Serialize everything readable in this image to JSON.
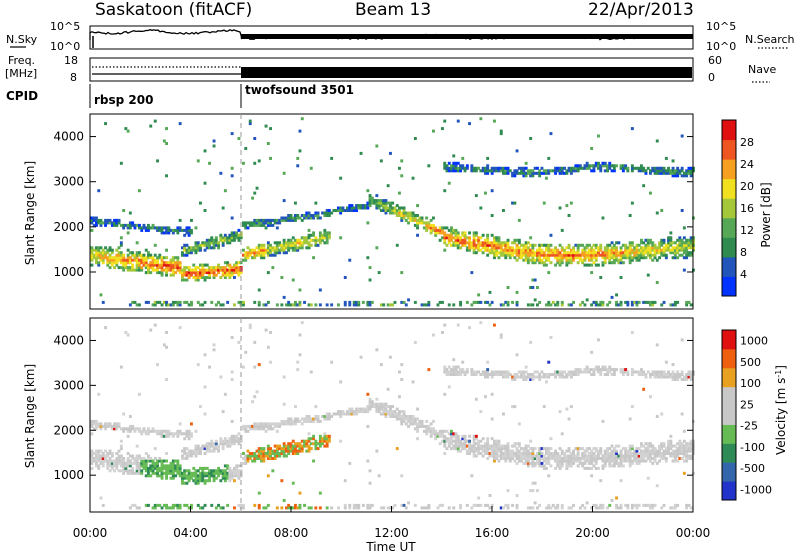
{
  "header": {
    "station": "Saskatoon (fitACF)",
    "beam": "Beam 13",
    "date": "22/Apr/2013"
  },
  "noise_panel": {
    "left_label": "N.Sky",
    "right_label": "N.Search",
    "left_ticks": [
      "10^5",
      "10^0"
    ],
    "right_ticks": [
      "10^5",
      "10^0"
    ]
  },
  "freq_panel": {
    "left_label_line1": "Freq.",
    "left_label_line2": "[MHz]",
    "left_ticks": [
      "18",
      "8"
    ],
    "right_label": "Nave",
    "right_ticks": [
      "60",
      "0"
    ]
  },
  "cpid_panel": {
    "label": "CPID",
    "programs": [
      {
        "name": "rbsp 200",
        "start": "00:00"
      },
      {
        "name": "twofsound 3501",
        "start": "06:00"
      }
    ]
  },
  "time_axis": {
    "label": "Time UT",
    "ticks": [
      "00:00",
      "04:00",
      "08:00",
      "12:00",
      "16:00",
      "20:00",
      "00:00"
    ]
  },
  "power_colorbar": {
    "label": "Power [dB]",
    "ticks": [
      "28",
      "24",
      "20",
      "16",
      "12",
      "8",
      "4"
    ],
    "colors": [
      "#0033ff",
      "#2255bb",
      "#2f8b50",
      "#56a856",
      "#a4c83a",
      "#f0e020",
      "#f5a020",
      "#ee5520",
      "#e01010"
    ]
  },
  "velocity_colorbar": {
    "label": "Velocity [m s",
    "label_sup": "-1",
    "label_end": "]",
    "ticks": [
      "1000",
      "500",
      "100",
      "25",
      "-25",
      "-100",
      "-500",
      "-1000"
    ],
    "colors": [
      "#2233cc",
      "#3366aa",
      "#2e8b57",
      "#66bb55",
      "#c8c8c8",
      "#c8c8c8",
      "#e8a020",
      "#ee6010",
      "#e01010"
    ]
  },
  "chart_data": [
    {
      "type": "heatmap",
      "title": "Power",
      "xlabel": "Time UT",
      "ylabel": "Slant Range [km]",
      "xlim": [
        0,
        24
      ],
      "ylim": [
        180,
        4500
      ],
      "yticks": [
        1000,
        2000,
        3000,
        4000
      ],
      "colorbar": "Power [dB]",
      "zlim": [
        0,
        30
      ]
    },
    {
      "type": "heatmap",
      "title": "Velocity",
      "xlabel": "Time UT",
      "ylabel": "Slant Range [km]",
      "xlim": [
        0,
        24
      ],
      "ylim": [
        180,
        4500
      ],
      "yticks": [
        1000,
        2000,
        3000,
        4000
      ],
      "colorbar": "Velocity [m s-1]",
      "zlim": [
        -1000,
        1000
      ]
    }
  ]
}
